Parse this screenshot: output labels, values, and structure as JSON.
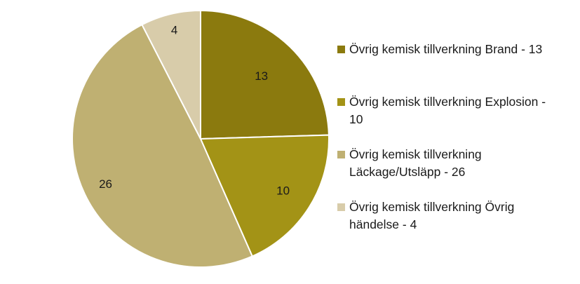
{
  "chart_data": {
    "type": "pie",
    "title": "",
    "slices": [
      {
        "name": "Övrig kemisk tillverkning Brand",
        "value": 13,
        "label": "13",
        "legend": "Övrig kemisk tillverkning Brand - 13",
        "color": "#8b7a0e"
      },
      {
        "name": "Övrig kemisk tillverkning Explosion",
        "value": 10,
        "label": "10",
        "legend": "Övrig kemisk tillverkning Explosion - 10",
        "color": "#a39316"
      },
      {
        "name": "Övrig kemisk tillverkning Läckage/Utsläpp",
        "value": 26,
        "label": "26",
        "legend": "Övrig kemisk tillverkning Läckage/Utsläpp - 26",
        "color": "#bfb072"
      },
      {
        "name": "Övrig kemisk tillverkning Övrig händelse",
        "value": 4,
        "label": "4",
        "legend": "Övrig kemisk tillverkning Övrig händelse - 4",
        "color": "#d8ccaa"
      }
    ],
    "legend_position": "right",
    "start_angle": "12 o'clock",
    "direction": "clockwise"
  }
}
